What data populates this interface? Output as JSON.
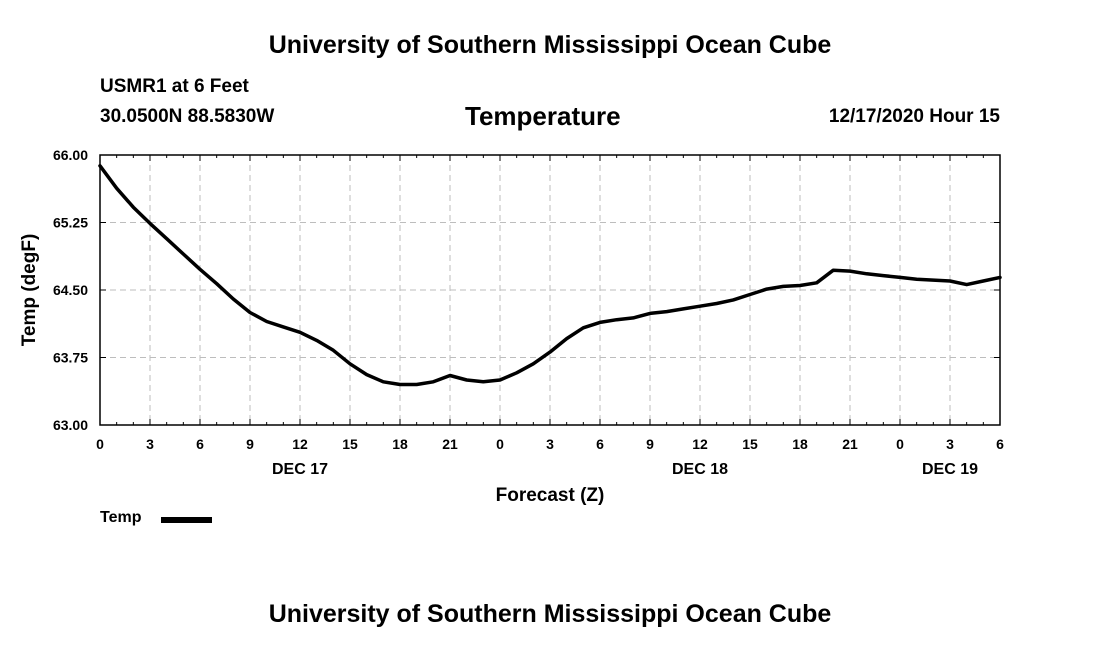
{
  "header": {
    "title": "University of Southern Mississippi Ocean Cube",
    "station": "USMR1 at 6 Feet",
    "coords": "30.0500N 88.5830W",
    "datetime": "12/17/2020 Hour 15"
  },
  "footer": {
    "title": "University of Southern Mississippi Ocean Cube"
  },
  "legend": {
    "label": "Temp"
  },
  "chart_data": {
    "type": "line",
    "title": "Temperature",
    "xlabel": "Forecast (Z)",
    "ylabel": "Temp (degF)",
    "ylim": [
      63.0,
      66.0
    ],
    "xlim": [
      0,
      54
    ],
    "grid": true,
    "legend_position": "bottom-left",
    "yticks": [
      "63.00",
      "63.75",
      "64.50",
      "65.25",
      "66.00"
    ],
    "xticks": [
      "0",
      "3",
      "6",
      "9",
      "12",
      "15",
      "18",
      "21",
      "0",
      "3",
      "6",
      "9",
      "12",
      "15",
      "18",
      "21",
      "0",
      "3",
      "6"
    ],
    "day_labels": [
      {
        "label": "DEC 17",
        "hour": 12
      },
      {
        "label": "DEC 18",
        "hour": 36
      },
      {
        "label": "DEC 19",
        "hour": 51
      }
    ],
    "series": [
      {
        "name": "Temp",
        "color": "#000000",
        "x": [
          0,
          1,
          2,
          3,
          4,
          5,
          6,
          7,
          8,
          9,
          10,
          11,
          12,
          13,
          14,
          15,
          16,
          17,
          18,
          19,
          20,
          21,
          22,
          23,
          24,
          25,
          26,
          27,
          28,
          29,
          30,
          31,
          32,
          33,
          34,
          35,
          36,
          37,
          38,
          39,
          40,
          41,
          42,
          43,
          44,
          45,
          46,
          47,
          48,
          49,
          50,
          51,
          52,
          53,
          54
        ],
        "values": [
          65.88,
          65.63,
          65.42,
          65.24,
          65.07,
          64.9,
          64.73,
          64.57,
          64.4,
          64.25,
          64.15,
          64.09,
          64.03,
          63.94,
          63.83,
          63.68,
          63.56,
          63.48,
          63.45,
          63.45,
          63.48,
          63.55,
          63.5,
          63.48,
          63.5,
          63.58,
          63.68,
          63.81,
          63.96,
          64.08,
          64.14,
          64.17,
          64.19,
          64.24,
          64.26,
          64.29,
          64.32,
          64.35,
          64.39,
          64.45,
          64.51,
          64.54,
          64.55,
          64.58,
          64.72,
          64.71,
          64.68,
          64.66,
          64.64,
          64.62,
          64.61,
          64.6,
          64.56,
          64.6,
          64.64
        ]
      }
    ]
  }
}
